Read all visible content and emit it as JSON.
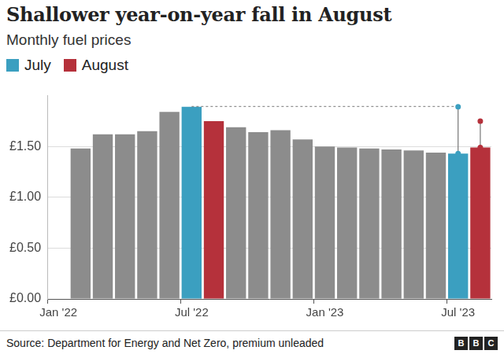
{
  "chart_data": {
    "type": "bar",
    "title": "Shallower year-on-year fall in August",
    "subtitle": "Monthly fuel prices",
    "source": "Source: Department for Energy and Net Zero, premium unleaded",
    "branding": "BBC",
    "categories": [
      "Jan '22",
      null,
      null,
      null,
      null,
      null,
      "Jul '22",
      null,
      null,
      null,
      null,
      null,
      "Jan '23",
      null,
      null,
      null,
      null,
      null,
      "Jul '23",
      null
    ],
    "series": [
      {
        "color": "#8c8c8c",
        "values": [
          null,
          1.48,
          1.62,
          1.62,
          1.65,
          1.84,
          null,
          null,
          1.69,
          1.64,
          1.66,
          1.57,
          1.5,
          1.49,
          1.48,
          1.47,
          1.46,
          1.44,
          null,
          null
        ]
      },
      {
        "name": "July",
        "color": "#3b9fc0",
        "values": [
          null,
          null,
          null,
          null,
          null,
          null,
          1.89,
          null,
          null,
          null,
          null,
          null,
          null,
          null,
          null,
          null,
          null,
          null,
          1.43,
          null
        ]
      },
      {
        "name": "August",
        "color": "#b5313b",
        "values": [
          null,
          null,
          null,
          null,
          null,
          null,
          null,
          1.75,
          null,
          null,
          null,
          null,
          null,
          null,
          null,
          null,
          null,
          null,
          null,
          1.49
        ]
      }
    ],
    "ylim": [
      0,
      2
    ],
    "yticks": [
      {
        "value": 0,
        "label": "£0.00"
      },
      {
        "value": 0.5,
        "label": "£0.50"
      },
      {
        "value": 1,
        "label": "£1.00"
      },
      {
        "value": 1.5,
        "label": "£1.50"
      }
    ],
    "grid": true,
    "legend": "top-left"
  }
}
